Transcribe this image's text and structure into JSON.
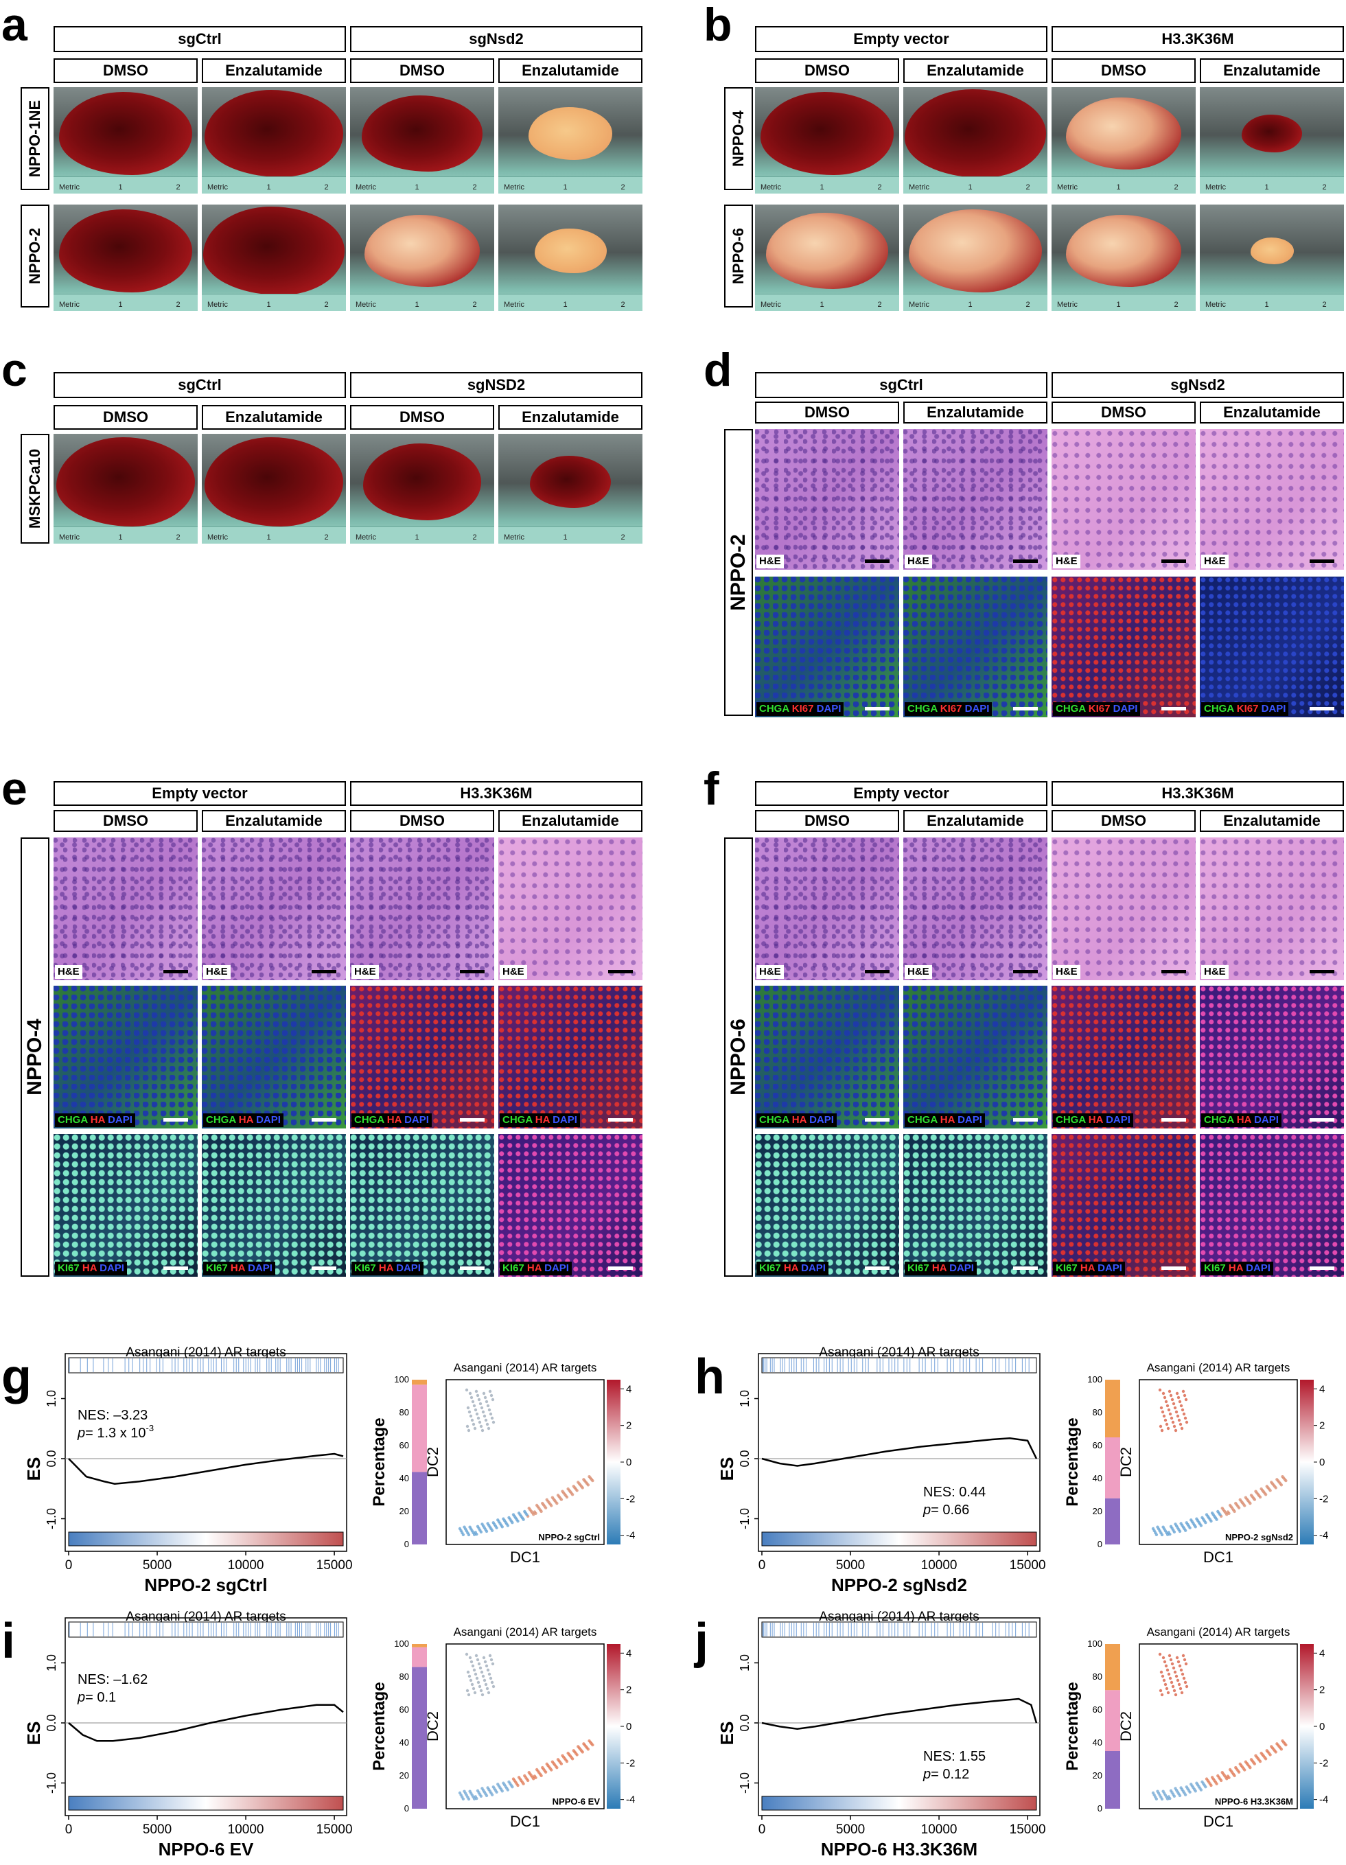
{
  "panels": {
    "a": {
      "letter": "a",
      "groups": [
        "sgCtrl",
        "sgNsd2"
      ],
      "conditions": [
        "DMSO",
        "Enzalutamide",
        "DMSO",
        "Enzalutamide"
      ],
      "rows": [
        "NPPO-1NE",
        "NPPO-2"
      ]
    },
    "b": {
      "letter": "b",
      "groups": [
        "Empty vector",
        "H3.3K36M"
      ],
      "conditions": [
        "DMSO",
        "Enzalutamide",
        "DMSO",
        "Enzalutamide"
      ],
      "rows": [
        "NPPO-4",
        "NPPO-6"
      ]
    },
    "c": {
      "letter": "c",
      "groups": [
        "sgCtrl",
        "sgNSD2"
      ],
      "conditions": [
        "DMSO",
        "Enzalutamide",
        "DMSO",
        "Enzalutamide"
      ],
      "rows": [
        "MSKPCa10"
      ]
    },
    "d": {
      "letter": "d",
      "groups": [
        "sgCtrl",
        "sgNsd2"
      ],
      "conditions": [
        "DMSO",
        "Enzalutamide",
        "DMSO",
        "Enzalutamide"
      ],
      "row": "NPPO-2"
    },
    "e": {
      "letter": "e",
      "groups": [
        "Empty vector",
        "H3.3K36M"
      ],
      "conditions": [
        "DMSO",
        "Enzalutamide",
        "DMSO",
        "Enzalutamide"
      ],
      "row": "NPPO-4"
    },
    "f": {
      "letter": "f",
      "groups": [
        "Empty vector",
        "H3.3K36M"
      ],
      "conditions": [
        "DMSO",
        "Enzalutamide",
        "DMSO",
        "Enzalutamide"
      ],
      "row": "NPPO-6"
    }
  },
  "tumor_labels": {
    "ruler": "Metric",
    "tick1": "1",
    "tick2": "2"
  },
  "stain_labels": {
    "he": "H&E",
    "chga": "CHGA",
    "ki67": "KI67",
    "ha": "HA",
    "dapi": "DAPI"
  },
  "gsea_panels": [
    {
      "letter": "g",
      "title": "Asangani (2014) AR targets",
      "nes": "NES: –3.23",
      "p": "= 1.3 x 10",
      "p_exp": "-3",
      "xlabel": "NPPO-2 sgCtrl",
      "dc_tag": "NPPO-2 sgCtrl"
    },
    {
      "letter": "h",
      "title": "Asangani (2014) AR targets",
      "nes": "NES: 0.44",
      "p": "= 0.66",
      "p_exp": "",
      "xlabel": "NPPO-2 sgNsd2",
      "dc_tag": "NPPO-2 sgNsd2"
    },
    {
      "letter": "i",
      "title": "Asangani (2014) AR targets",
      "nes": "NES: –1.62",
      "p": "= 0.1",
      "p_exp": "",
      "xlabel": "NPPO-6 EV",
      "dc_tag": "NPPO-6 EV"
    },
    {
      "letter": "j",
      "title": "Asangani (2014) AR targets",
      "nes": "NES: 1.55",
      "p": "= 0.12",
      "p_exp": "",
      "xlabel": "NPPO-6 H3.3K36M",
      "dc_tag": "NPPO-6 H3.3K36M"
    }
  ],
  "axis_labels": {
    "es": "ES",
    "percentage": "Percentage",
    "dc1": "DC1",
    "dc2": "DC2",
    "p_italic": "p"
  },
  "chart_data": [
    {
      "type": "line",
      "panel": "g",
      "ylabel": "ES",
      "x_ticks": [
        "0",
        "5000",
        "10000",
        "15000"
      ],
      "y_ticks": [
        "1.0",
        "0.0",
        "-1.0"
      ],
      "xlim": [
        0,
        15500
      ],
      "ylim": [
        -1.2,
        1.2
      ],
      "x": [
        0,
        1000,
        2000,
        2600,
        4000,
        6000,
        8000,
        10000,
        12000,
        14000,
        15000,
        15500
      ],
      "y": [
        0,
        -0.3,
        -0.38,
        -0.42,
        -0.38,
        -0.3,
        -0.2,
        -0.1,
        -0.02,
        0.05,
        0.08,
        0.04
      ]
    },
    {
      "type": "line",
      "panel": "h",
      "ylabel": "ES",
      "x_ticks": [
        "0",
        "5000",
        "10000",
        "15000"
      ],
      "y_ticks": [
        "1.0",
        "0.0",
        "-1.0"
      ],
      "xlim": [
        0,
        15500
      ],
      "ylim": [
        -1.2,
        1.2
      ],
      "x": [
        0,
        1000,
        2000,
        3000,
        5000,
        7000,
        9000,
        11000,
        13000,
        14000,
        15000,
        15500
      ],
      "y": [
        0,
        -0.08,
        -0.12,
        -0.08,
        0.02,
        0.12,
        0.2,
        0.26,
        0.32,
        0.34,
        0.3,
        0.0
      ]
    },
    {
      "type": "line",
      "panel": "i",
      "ylabel": "ES",
      "x_ticks": [
        "0",
        "5000",
        "10000",
        "15000"
      ],
      "y_ticks": [
        "1.0",
        "0.0",
        "-1.0"
      ],
      "xlim": [
        0,
        15500
      ],
      "ylim": [
        -1.2,
        1.2
      ],
      "x": [
        0,
        800,
        1600,
        2500,
        4000,
        6000,
        8000,
        10000,
        12000,
        14000,
        15000,
        15500
      ],
      "y": [
        0,
        -0.2,
        -0.3,
        -0.3,
        -0.25,
        -0.14,
        0.0,
        0.12,
        0.22,
        0.3,
        0.3,
        0.18
      ]
    },
    {
      "type": "line",
      "panel": "j",
      "ylabel": "ES",
      "x_ticks": [
        "0",
        "5000",
        "10000",
        "15000"
      ],
      "y_ticks": [
        "1.0",
        "0.0",
        "-1.0"
      ],
      "xlim": [
        0,
        15500
      ],
      "ylim": [
        -1.2,
        1.2
      ],
      "x": [
        0,
        1000,
        2000,
        3000,
        5000,
        7000,
        9000,
        11000,
        13000,
        14500,
        15200,
        15500
      ],
      "y": [
        0,
        -0.06,
        -0.1,
        -0.06,
        0.04,
        0.14,
        0.22,
        0.3,
        0.36,
        0.4,
        0.3,
        0.0
      ]
    },
    {
      "type": "bar",
      "panel": "g",
      "ylabel": "Percentage",
      "y_ticks": [
        "0",
        "20",
        "40",
        "60",
        "80",
        "100"
      ],
      "ylim": [
        0,
        100
      ],
      "segments": [
        {
          "color": "#8e6cc2",
          "value": 44
        },
        {
          "color": "#ef9fc2",
          "value": 53
        },
        {
          "color": "#f0a050",
          "value": 3
        }
      ]
    },
    {
      "type": "bar",
      "panel": "h",
      "ylabel": "Percentage",
      "y_ticks": [
        "0",
        "20",
        "40",
        "60",
        "80",
        "100"
      ],
      "ylim": [
        0,
        100
      ],
      "segments": [
        {
          "color": "#8e6cc2",
          "value": 28
        },
        {
          "color": "#ef9fc2",
          "value": 37
        },
        {
          "color": "#f0a050",
          "value": 35
        }
      ]
    },
    {
      "type": "bar",
      "panel": "i",
      "ylabel": "Percentage",
      "y_ticks": [
        "0",
        "20",
        "40",
        "60",
        "80",
        "100"
      ],
      "ylim": [
        0,
        100
      ],
      "segments": [
        {
          "color": "#8e6cc2",
          "value": 86
        },
        {
          "color": "#ef9fc2",
          "value": 12
        },
        {
          "color": "#f0a050",
          "value": 2
        }
      ]
    },
    {
      "type": "bar",
      "panel": "j",
      "ylabel": "Percentage",
      "y_ticks": [
        "0",
        "20",
        "40",
        "60",
        "80",
        "100"
      ],
      "ylim": [
        0,
        100
      ],
      "segments": [
        {
          "color": "#8e6cc2",
          "value": 35
        },
        {
          "color": "#ef9fc2",
          "value": 37
        },
        {
          "color": "#f0a050",
          "value": 28
        }
      ]
    },
    {
      "type": "scatter",
      "panel": "colorbar",
      "ticks": [
        "4",
        "2",
        "0",
        "-2",
        "-4"
      ],
      "range": [
        -4.5,
        4.5
      ]
    }
  ],
  "colors": {
    "low": "#2c7bb6",
    "mid": "#ffffff",
    "high": "#b2182b",
    "es_line": "#000000"
  }
}
